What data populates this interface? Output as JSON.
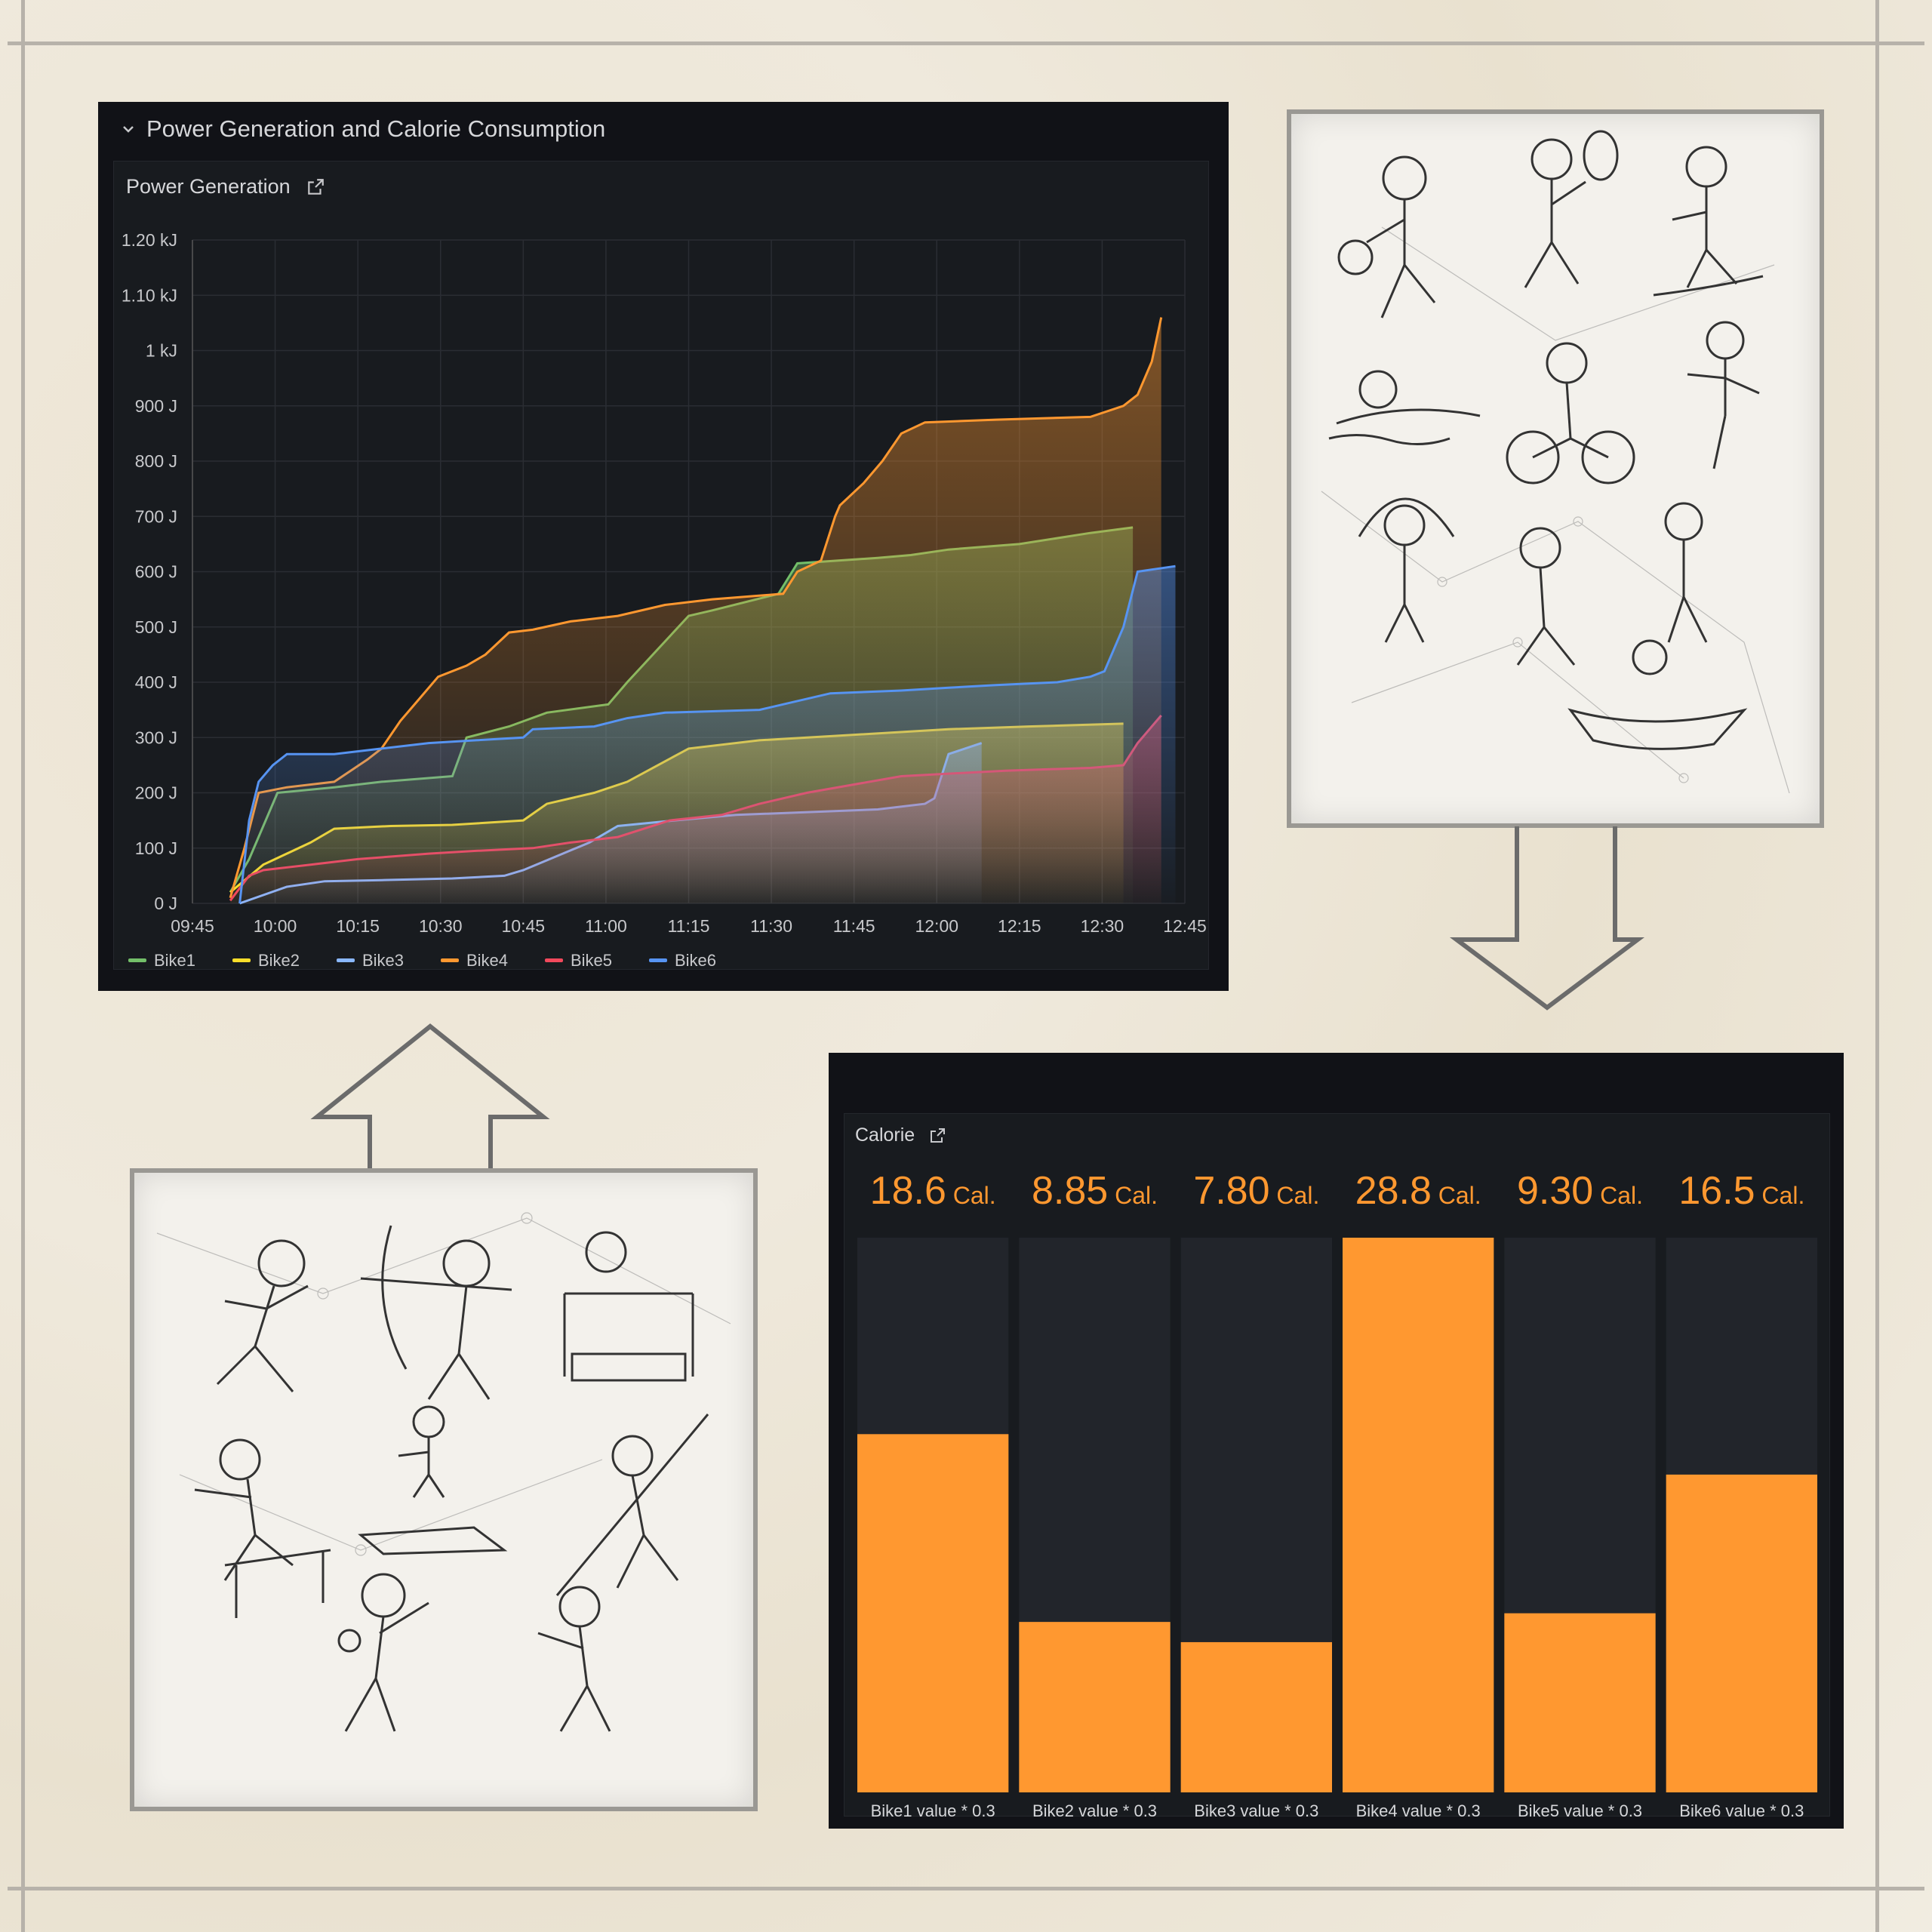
{
  "dashboard": {
    "row_title": "Power Generation and Calorie Consumption",
    "power_panel_title": "Power Generation",
    "calorie_panel_title": "Calorie"
  },
  "chart_data": [
    {
      "type": "area",
      "title": "Power Generation",
      "xlabel": "",
      "ylabel": "",
      "x_ticks": [
        "09:45",
        "10:00",
        "10:15",
        "10:30",
        "10:45",
        "11:00",
        "11:15",
        "11:30",
        "11:45",
        "12:00",
        "12:15",
        "12:30",
        "12:45"
      ],
      "y_ticks": [
        "0 J",
        "100 J",
        "200 J",
        "300 J",
        "400 J",
        "500 J",
        "600 J",
        "700 J",
        "800 J",
        "900 J",
        "1 kJ",
        "1.10 kJ",
        "1.20 kJ"
      ],
      "xlim": [
        0,
        210
      ],
      "ylim": [
        0,
        1200
      ],
      "grid": true,
      "legend_position": "bottom-left",
      "series": [
        {
          "name": "Bike1",
          "color": "#73bf69",
          "x": [
            8,
            12,
            18,
            30,
            40,
            55,
            58,
            67,
            75,
            88,
            92,
            105,
            110,
            124,
            128,
            145,
            152,
            160,
            175,
            190,
            199
          ],
          "y": [
            20,
            80,
            200,
            210,
            220,
            230,
            300,
            320,
            345,
            360,
            400,
            520,
            530,
            560,
            615,
            625,
            630,
            640,
            650,
            670,
            680
          ]
        },
        {
          "name": "Bike2",
          "color": "#fade2a",
          "x": [
            8,
            15,
            25,
            30,
            42,
            55,
            70,
            75,
            85,
            92,
            105,
            120,
            140,
            160,
            177,
            197
          ],
          "y": [
            20,
            70,
            110,
            135,
            140,
            142,
            150,
            180,
            200,
            220,
            280,
            295,
            305,
            315,
            320,
            325
          ]
        },
        {
          "name": "Bike3",
          "color": "#8ab8ff",
          "x": [
            10,
            20,
            28,
            40,
            55,
            66,
            70,
            84,
            90,
            102,
            115,
            145,
            155,
            157,
            160,
            167
          ],
          "y": [
            0,
            30,
            40,
            42,
            45,
            50,
            60,
            110,
            140,
            150,
            160,
            170,
            180,
            190,
            270,
            290
          ]
        },
        {
          "name": "Bike4",
          "color": "#ff9830",
          "x": [
            8,
            11,
            14,
            20,
            30,
            37,
            40,
            44,
            48,
            52,
            58,
            62,
            67,
            72,
            80,
            90,
            100,
            110,
            125,
            128,
            133,
            136,
            137,
            142,
            146,
            150,
            155,
            170,
            190,
            197,
            200,
            203,
            205
          ],
          "y": [
            10,
            100,
            200,
            210,
            220,
            260,
            280,
            330,
            370,
            410,
            430,
            450,
            490,
            495,
            510,
            520,
            540,
            550,
            560,
            600,
            620,
            700,
            720,
            760,
            800,
            850,
            870,
            875,
            880,
            900,
            920,
            980,
            1060
          ]
        },
        {
          "name": "Bike5",
          "color": "#f2495c",
          "x": [
            8,
            12,
            15,
            25,
            35,
            50,
            60,
            72,
            80,
            85,
            90,
            101,
            112,
            120,
            130,
            150,
            172,
            190,
            197,
            200,
            205
          ],
          "y": [
            5,
            50,
            60,
            70,
            80,
            90,
            95,
            100,
            110,
            115,
            120,
            150,
            160,
            180,
            200,
            230,
            240,
            245,
            250,
            290,
            340
          ]
        },
        {
          "name": "Bike6",
          "color": "#5794f2",
          "x": [
            10,
            12,
            14,
            17,
            20,
            30,
            40,
            50,
            60,
            70,
            72,
            85,
            92,
            100,
            120,
            135,
            150,
            160,
            170,
            183,
            190,
            193,
            197,
            200,
            204,
            208
          ],
          "y": [
            0,
            150,
            220,
            250,
            270,
            270,
            280,
            290,
            295,
            300,
            315,
            320,
            335,
            345,
            350,
            380,
            385,
            390,
            395,
            400,
            410,
            420,
            500,
            600,
            605,
            610
          ]
        }
      ]
    },
    {
      "type": "bar",
      "title": "Calorie",
      "categories": [
        "Bike1 value * 0.3",
        "Bike2 value * 0.3",
        "Bike3 value * 0.3",
        "Bike4 value * 0.3",
        "Bike5 value * 0.3",
        "Bike6 value * 0.3"
      ],
      "values": [
        18.6,
        8.85,
        7.8,
        28.8,
        9.3,
        16.5
      ],
      "value_labels": [
        "18.6",
        "8.85",
        "7.80",
        "28.8",
        "9.30",
        "16.5"
      ],
      "unit": "Cal.",
      "ylim": [
        0,
        28.8
      ],
      "bar_color": "#ff9830",
      "track_color": "#22252b"
    }
  ],
  "icons": {
    "collapse": "chevron-down-icon",
    "panel_link": "external-link-icon"
  }
}
